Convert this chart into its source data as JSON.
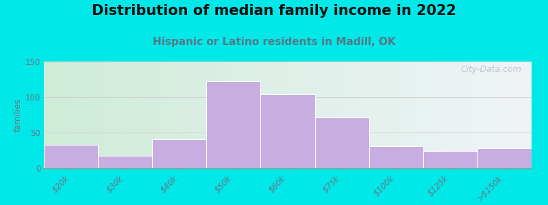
{
  "title": "Distribution of median family income in 2022",
  "subtitle": "Hispanic or Latino residents in Madill, OK",
  "categories": [
    "$20k",
    "$30k",
    "$40k",
    "$50k",
    "$60k",
    "$75k",
    "$100k",
    "$125k",
    ">$150k"
  ],
  "values": [
    33,
    17,
    40,
    122,
    104,
    71,
    31,
    24,
    28
  ],
  "bar_color": "#c8aee0",
  "bar_edgecolor": "#ffffff",
  "background_outer": "#00e8e8",
  "background_inner_left": "#ceecd8",
  "background_inner_right": "#f0f4f8",
  "ylabel": "families",
  "ylim": [
    0,
    150
  ],
  "yticks": [
    0,
    50,
    100,
    150
  ],
  "title_fontsize": 15,
  "subtitle_fontsize": 11,
  "subtitle_color": "#557788",
  "watermark": "City-Data.com",
  "watermark_color": "#b0bcc8"
}
